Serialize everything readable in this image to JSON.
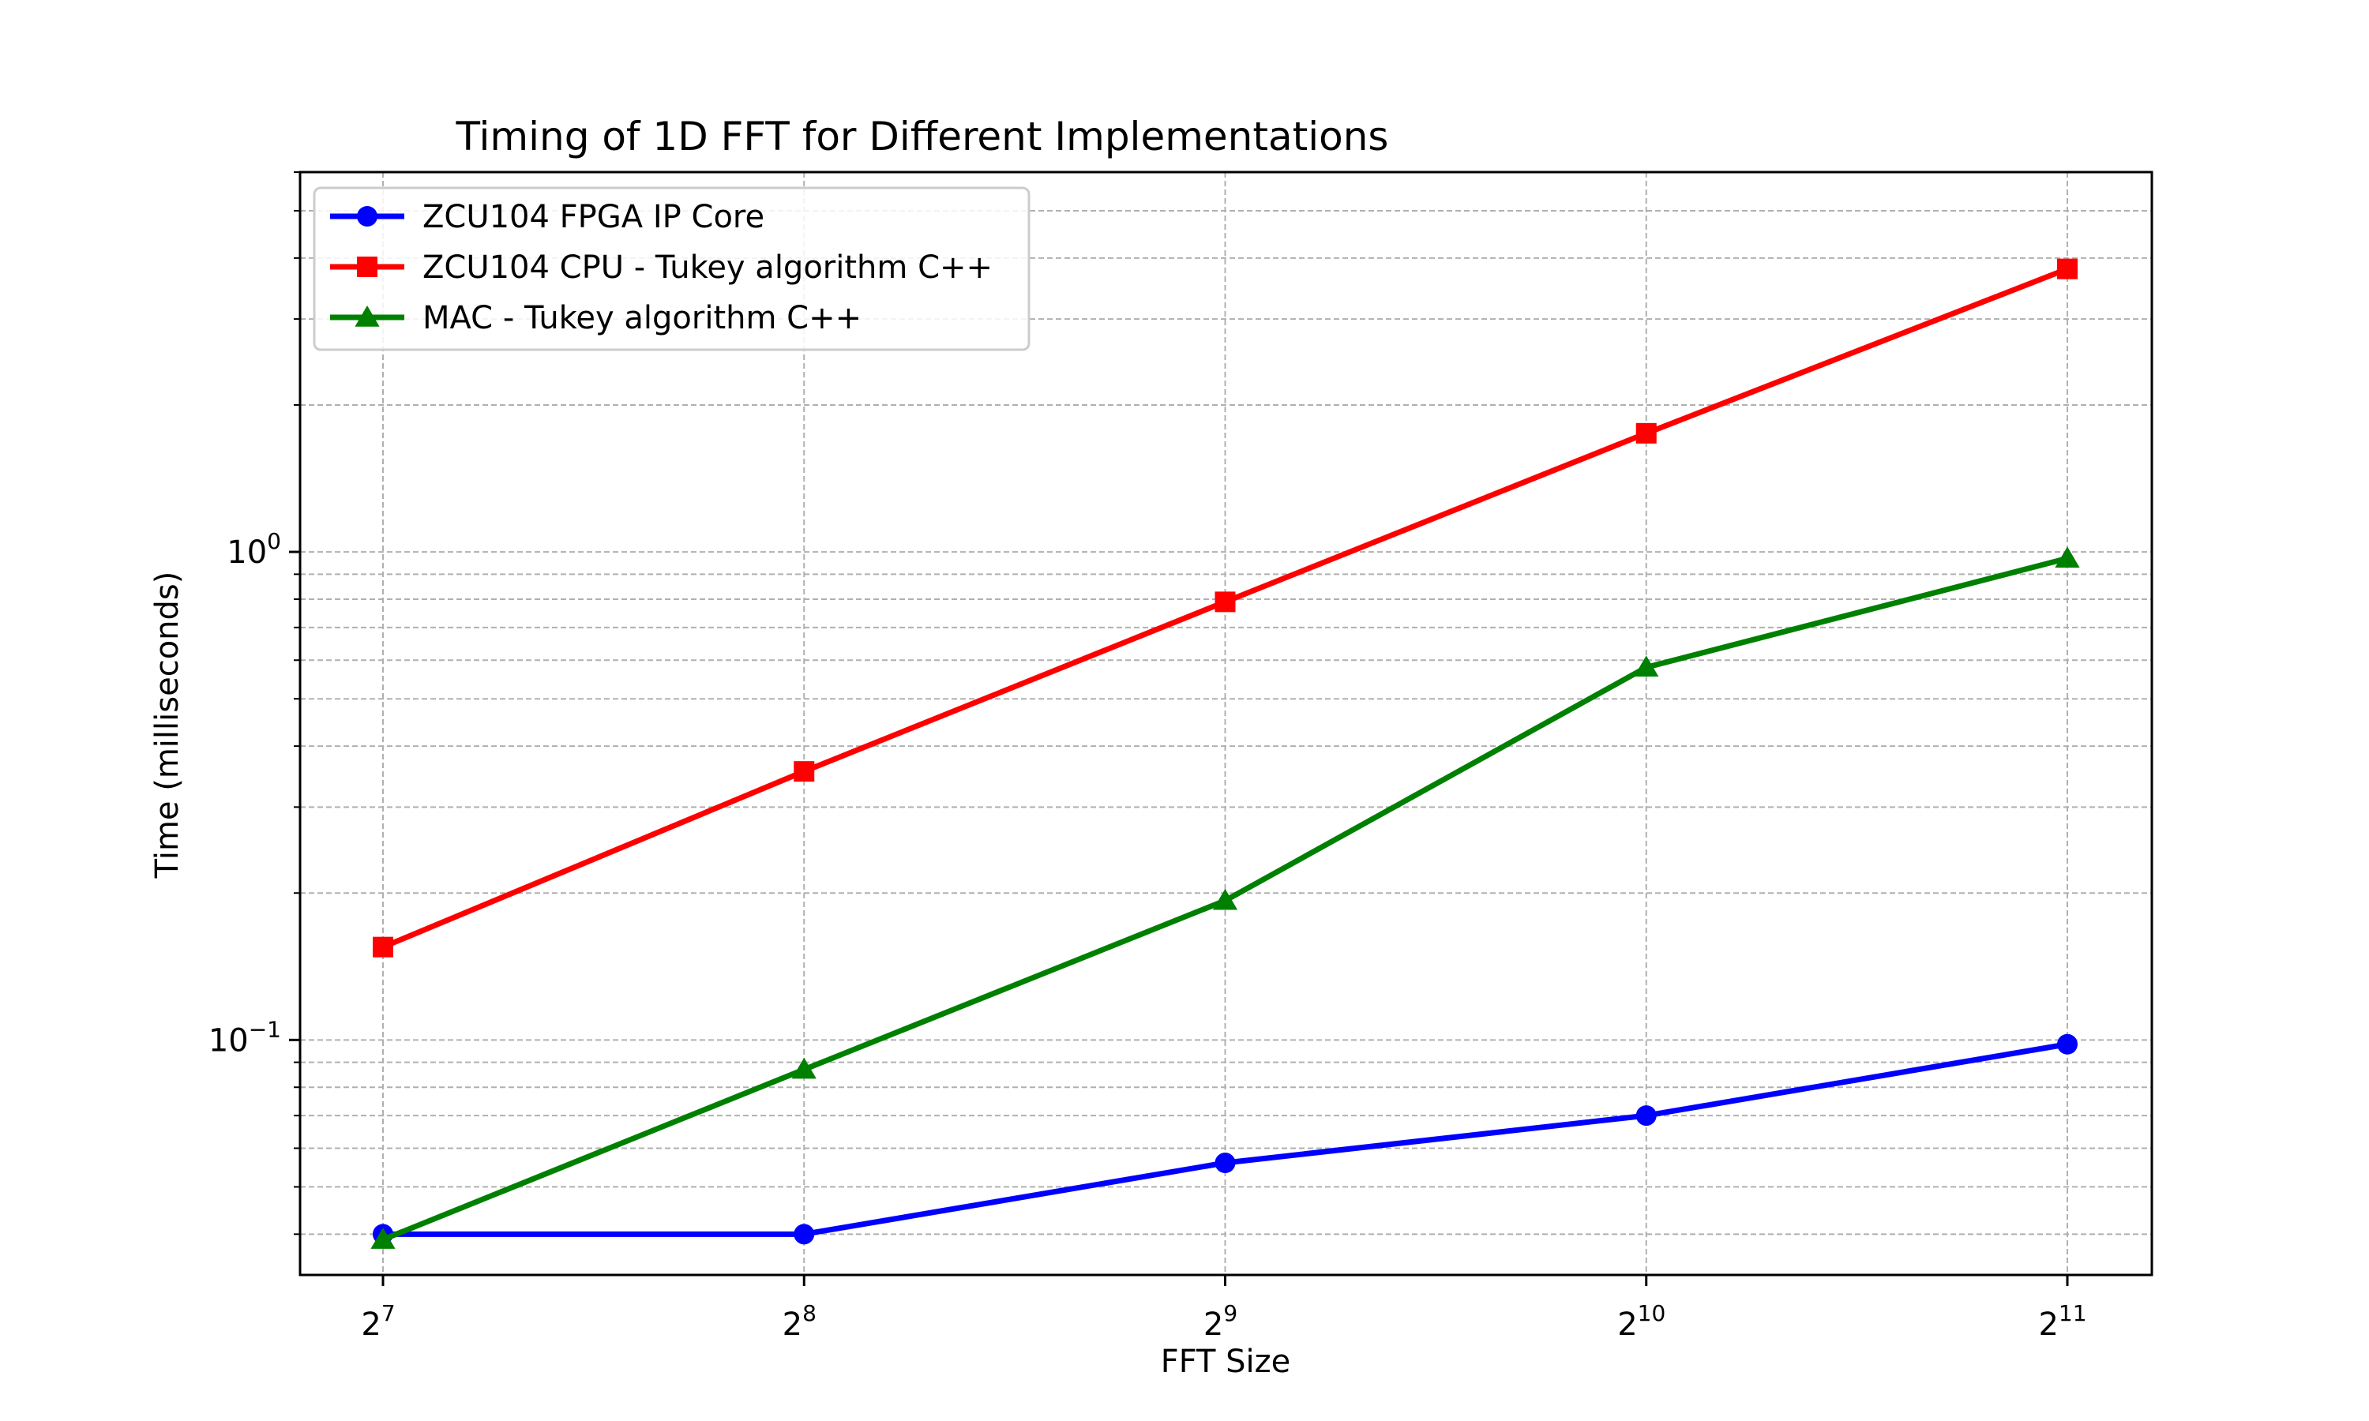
{
  "chart_data": {
    "type": "line",
    "title": "Timing of 1D FFT for Different Implementations",
    "xlabel": "FFT Size",
    "ylabel": "Time (milliseconds)",
    "x_scale": "log2",
    "y_scale": "log10",
    "x": [
      128,
      256,
      512,
      1024,
      2048
    ],
    "x_tick_labels": [
      {
        "base": "2",
        "exp": "7"
      },
      {
        "base": "2",
        "exp": "8"
      },
      {
        "base": "2",
        "exp": "9"
      },
      {
        "base": "2",
        "exp": "10"
      },
      {
        "base": "2",
        "exp": "11"
      }
    ],
    "y_tick_labels": [
      {
        "base": "10",
        "exp": "−1",
        "value": 0.1
      },
      {
        "base": "10",
        "exp": "0",
        "value": 1
      }
    ],
    "ylim": [
      0.033,
      6.0
    ],
    "grid": true,
    "legend_position": "top-left",
    "series": [
      {
        "name": "ZCU104 FPGA IP Core",
        "color": "#0000ff",
        "marker": "circle",
        "values": [
          0.04,
          0.04,
          0.056,
          0.07,
          0.098
        ]
      },
      {
        "name": "ZCU104 CPU - Tukey algorithm C++",
        "color": "#ff0000",
        "marker": "square",
        "values": [
          0.155,
          0.355,
          0.79,
          1.75,
          3.8
        ]
      },
      {
        "name": "MAC - Tukey algorithm C++",
        "color": "#008000",
        "marker": "triangle",
        "values": [
          0.039,
          0.087,
          0.193,
          0.58,
          0.97
        ]
      }
    ]
  }
}
